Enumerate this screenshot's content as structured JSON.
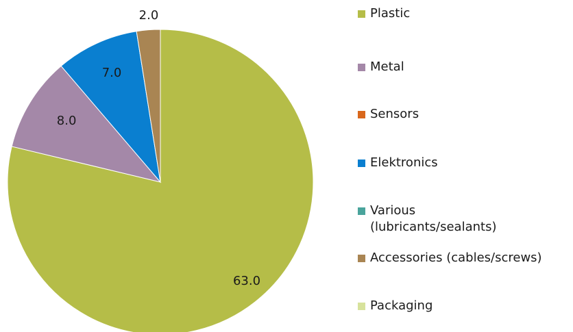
{
  "chart_data": {
    "type": "pie",
    "title": "",
    "categories": [
      "Plastic",
      "Metal",
      "Sensors",
      "Elektronics",
      "Various\n(lubricants/sealants)",
      "Accessories (cables/screws)",
      "Packaging"
    ],
    "values": [
      63.0,
      8.0,
      0,
      7.0,
      0,
      2.0,
      0
    ],
    "data_labels": [
      "63.0",
      "8.0",
      "",
      "7.0",
      "",
      "2.0",
      ""
    ],
    "colors": [
      "#b5bd48",
      "#a488a8",
      "#d9671c",
      "#0a7fd0",
      "#4aa49c",
      "#a98553",
      "#d7e29c"
    ],
    "start_angle_deg": 0,
    "direction": "clockwise",
    "legend_position": "right"
  }
}
